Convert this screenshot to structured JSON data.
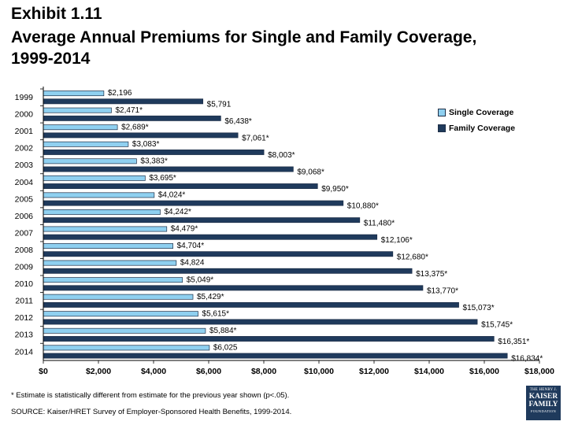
{
  "header": {
    "exhibit": "Exhibit 1.11",
    "title": "Average Annual Premiums for Single and Family Coverage, 1999-2014"
  },
  "chart_data": {
    "type": "bar",
    "orientation": "horizontal",
    "categories": [
      "1999",
      "2000",
      "2001",
      "2002",
      "2003",
      "2004",
      "2005",
      "2006",
      "2007",
      "2008",
      "2009",
      "2010",
      "2011",
      "2012",
      "2013",
      "2014"
    ],
    "series": [
      {
        "name": "Single Coverage",
        "color": "#8fd0f0",
        "values": [
          2196,
          2471,
          2689,
          3083,
          3383,
          3695,
          4024,
          4242,
          4479,
          4704,
          4824,
          5049,
          5429,
          5615,
          5884,
          6025
        ],
        "labels": [
          "$2,196",
          "$2,471*",
          "$2,689*",
          "$3,083*",
          "$3,383*",
          "$3,695*",
          "$4,024*",
          "$4,242*",
          "$4,479*",
          "$4,704*",
          "$4,824",
          "$5,049*",
          "$5,429*",
          "$5,615*",
          "$5,884*",
          "$6,025"
        ]
      },
      {
        "name": "Family Coverage",
        "color": "#1f3a5c",
        "values": [
          5791,
          6438,
          7061,
          8003,
          9068,
          9950,
          10880,
          11480,
          12106,
          12680,
          13375,
          13770,
          15073,
          15745,
          16351,
          16834
        ],
        "labels": [
          "$5,791",
          "$6,438*",
          "$7,061*",
          "$8,003*",
          "$9,068*",
          "$9,950*",
          "$10,880*",
          "$11,480*",
          "$12,106*",
          "$12,680*",
          "$13,375*",
          "$13,770*",
          "$15,073*",
          "$15,745*",
          "$16,351*",
          "$16,834*"
        ]
      }
    ],
    "xlim": [
      0,
      18000
    ],
    "x_ticks": [
      "$0",
      "$2,000",
      "$4,000",
      "$6,000",
      "$8,000",
      "$10,000",
      "$12,000",
      "$14,000",
      "$16,000",
      "$18,000"
    ],
    "grid": false,
    "legend": "right"
  },
  "footnote": "* Estimate is statistically different from estimate for the previous year shown (p<.05).",
  "source": "SOURCE:  Kaiser/HRET Survey of Employer-Sponsored Health Benefits, 1999-2014.",
  "logo": {
    "line1": "THE HENRY J.",
    "line2": "KAISER",
    "line3": "FAMILY",
    "line4": "FOUNDATION"
  }
}
